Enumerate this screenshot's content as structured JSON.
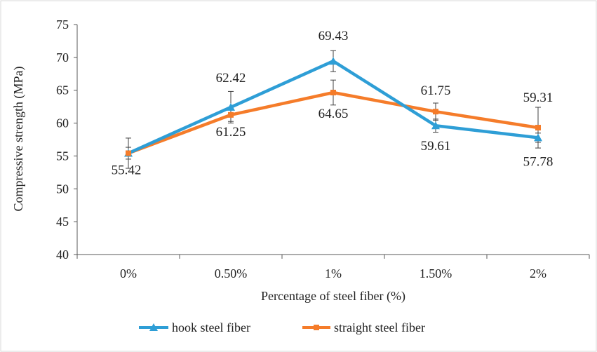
{
  "chart_data": {
    "type": "line",
    "title": "",
    "xlabel": "Percentage of steel fiber (%)",
    "ylabel": "Compressive strength (MPa)",
    "categories": [
      "0%",
      "0.50%",
      "1%",
      "1.50%",
      "2%"
    ],
    "ylim": [
      40,
      75
    ],
    "yticks": [
      40,
      45,
      50,
      55,
      60,
      65,
      70,
      75
    ],
    "grid": false,
    "legend": "bottom",
    "series": [
      {
        "name": "hook steel fiber",
        "color": "#2E9ED6",
        "marker": "triangle",
        "values": [
          55.42,
          62.42,
          69.43,
          59.61,
          57.78
        ],
        "labels": [
          "55.42",
          "62.42",
          "69.43",
          "59.61",
          "57.78"
        ],
        "errors": [
          0.9,
          2.4,
          1.6,
          1.0,
          0.7
        ]
      },
      {
        "name": "straight steel fiber",
        "color": "#F57C2A",
        "marker": "square",
        "values": [
          55.42,
          61.25,
          64.65,
          61.75,
          59.31
        ],
        "labels": [
          "",
          "61.25",
          "64.65",
          "61.75",
          "59.31"
        ],
        "errors": [
          2.3,
          1.0,
          1.9,
          1.3,
          3.1
        ]
      }
    ]
  }
}
